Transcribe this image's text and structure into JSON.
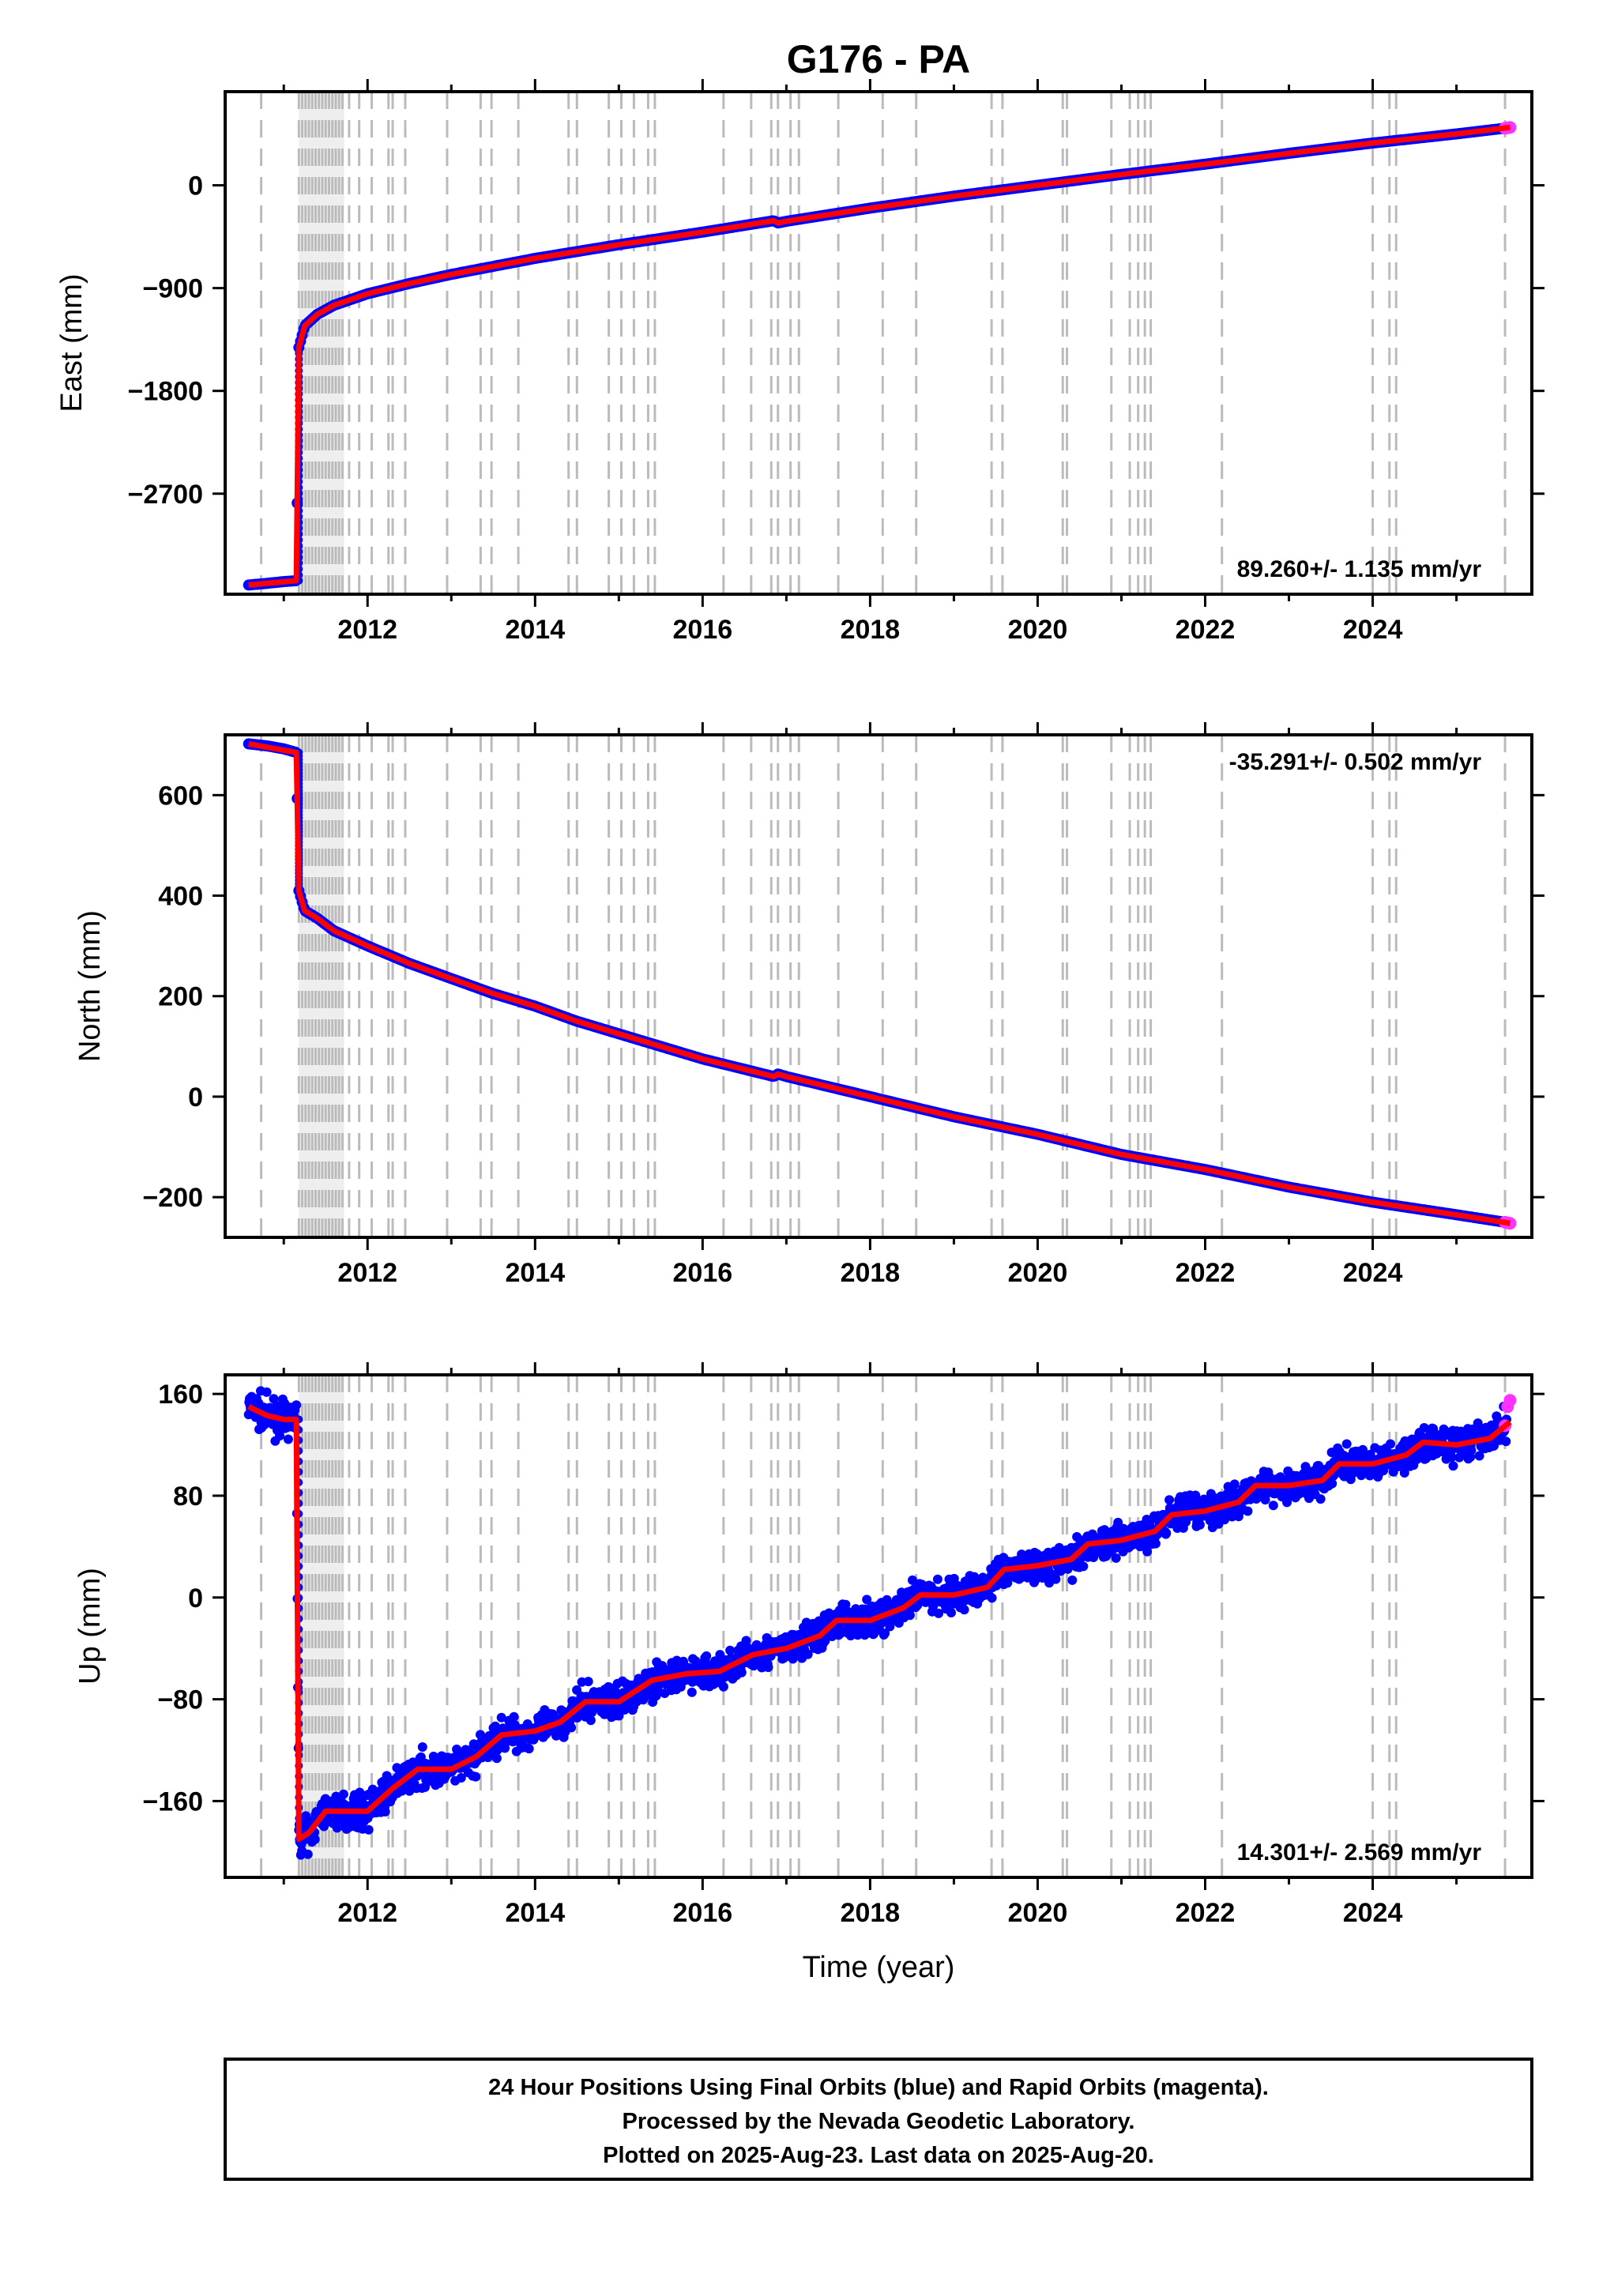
{
  "title": "G176 - PA",
  "colors": {
    "final_orbits": "#0000ff",
    "rapid_orbits": "#ff33ff",
    "model": "#ff0000",
    "event_lines": "#bbbbbb",
    "axes": "#000000"
  },
  "x_axis": {
    "label": "Time (year)",
    "range": [
      2010.3,
      2025.9
    ],
    "ticks": [
      2012,
      2014,
      2016,
      2018,
      2020,
      2022,
      2024
    ],
    "tick_labels": [
      "2012",
      "2014",
      "2016",
      "2018",
      "2020",
      "2022",
      "2024"
    ]
  },
  "event_lines": {
    "dense_span": [
      2011.18,
      2011.72
    ],
    "years": [
      2010.73,
      2011.18,
      2011.22,
      2011.26,
      2011.3,
      2011.34,
      2011.38,
      2011.42,
      2011.46,
      2011.5,
      2011.54,
      2011.58,
      2011.62,
      2011.66,
      2011.7,
      2011.78,
      2011.9,
      2012.05,
      2012.25,
      2012.3,
      2012.45,
      2012.95,
      2013.35,
      2013.48,
      2013.8,
      2014.4,
      2014.5,
      2014.88,
      2015.03,
      2015.18,
      2015.35,
      2015.43,
      2016.25,
      2016.58,
      2016.82,
      2016.9,
      2017.05,
      2017.15,
      2017.62,
      2018.15,
      2018.55,
      2019.45,
      2019.58,
      2020.3,
      2020.35,
      2020.88,
      2021.1,
      2021.2,
      2021.28,
      2021.35,
      2022.2,
      2024.0,
      2024.2,
      2024.28,
      2025.58
    ]
  },
  "chart_data": [
    {
      "type": "scatter",
      "component": "east",
      "ylabel": "East (mm)",
      "ylim": [
        -3580,
        820
      ],
      "yticks": [
        0,
        -900,
        -1800,
        -2700
      ],
      "ytick_labels": [
        "0",
        "−900",
        "−1800",
        "−2700"
      ],
      "rate_label": "89.260+/- 1.135 mm/yr",
      "rate_position": "bottom-right",
      "series": [
        {
          "name": "Final Orbits",
          "values": [
            [
              2010.58,
              -3500
            ],
            [
              2010.8,
              -3485
            ],
            [
              2011.0,
              -3470
            ],
            [
              2011.15,
              -3462
            ],
            [
              2011.18,
              -1420
            ],
            [
              2011.25,
              -1230
            ],
            [
              2011.4,
              -1130
            ],
            [
              2011.6,
              -1050
            ],
            [
              2012.0,
              -950
            ],
            [
              2012.5,
              -860
            ],
            [
              2013.0,
              -780
            ],
            [
              2014.0,
              -640
            ],
            [
              2015.0,
              -520
            ],
            [
              2016.0,
              -410
            ],
            [
              2016.85,
              -310
            ],
            [
              2016.9,
              -330
            ],
            [
              2017.0,
              -315
            ],
            [
              2018.0,
              -200
            ],
            [
              2019.0,
              -95
            ],
            [
              2020.0,
              0
            ],
            [
              2021.0,
              95
            ],
            [
              2022.0,
              185
            ],
            [
              2023.0,
              280
            ],
            [
              2024.0,
              370
            ],
            [
              2025.0,
              450
            ],
            [
              2025.58,
              500
            ],
            [
              2025.62,
              505
            ]
          ]
        },
        {
          "name": "Rapid Orbits",
          "values": [
            [
              2025.58,
              500
            ],
            [
              2025.61,
              504
            ],
            [
              2025.64,
              507
            ]
          ]
        },
        {
          "name": "Model",
          "values": [
            [
              2010.58,
              -3500
            ],
            [
              2011.15,
              -3462
            ],
            [
              2011.18,
              -1420
            ],
            [
              2011.25,
              -1230
            ],
            [
              2011.4,
              -1130
            ],
            [
              2011.6,
              -1050
            ],
            [
              2012.0,
              -950
            ],
            [
              2012.5,
              -860
            ],
            [
              2013.0,
              -780
            ],
            [
              2014.0,
              -640
            ],
            [
              2015.0,
              -520
            ],
            [
              2016.0,
              -410
            ],
            [
              2016.85,
              -310
            ],
            [
              2016.9,
              -330
            ],
            [
              2017.0,
              -315
            ],
            [
              2018.0,
              -200
            ],
            [
              2019.0,
              -95
            ],
            [
              2020.0,
              0
            ],
            [
              2021.0,
              95
            ],
            [
              2022.0,
              185
            ],
            [
              2023.0,
              280
            ],
            [
              2024.0,
              370
            ],
            [
              2025.0,
              450
            ],
            [
              2025.64,
              507
            ]
          ]
        }
      ]
    },
    {
      "type": "scatter",
      "component": "north",
      "ylabel": "North (mm)",
      "ylim": [
        -280,
        720
      ],
      "yticks": [
        600,
        400,
        200,
        0,
        -200
      ],
      "ytick_labels": [
        "600",
        "400",
        "200",
        "0",
        "−200"
      ],
      "rate_label": "-35.291+/- 0.502 mm/yr",
      "rate_position": "top-right",
      "series": [
        {
          "name": "Final Orbits",
          "values": [
            [
              2010.58,
              702
            ],
            [
              2010.8,
              698
            ],
            [
              2011.0,
              692
            ],
            [
              2011.15,
              685
            ],
            [
              2011.18,
              410
            ],
            [
              2011.25,
              370
            ],
            [
              2011.4,
              355
            ],
            [
              2011.6,
              330
            ],
            [
              2012.0,
              300
            ],
            [
              2012.5,
              265
            ],
            [
              2013.0,
              235
            ],
            [
              2013.5,
              205
            ],
            [
              2014.0,
              180
            ],
            [
              2014.5,
              150
            ],
            [
              2015.0,
              125
            ],
            [
              2015.5,
              100
            ],
            [
              2016.0,
              75
            ],
            [
              2016.85,
              40
            ],
            [
              2016.9,
              45
            ],
            [
              2017.0,
              40
            ],
            [
              2018.0,
              0
            ],
            [
              2019.0,
              -40
            ],
            [
              2020.0,
              -75
            ],
            [
              2021.0,
              -115
            ],
            [
              2022.0,
              -145
            ],
            [
              2023.0,
              -180
            ],
            [
              2024.0,
              -210
            ],
            [
              2025.0,
              -235
            ],
            [
              2025.58,
              -250
            ],
            [
              2025.62,
              -252
            ]
          ]
        },
        {
          "name": "Rapid Orbits",
          "values": [
            [
              2025.58,
              -250
            ],
            [
              2025.61,
              -251
            ],
            [
              2025.64,
              -252
            ]
          ]
        },
        {
          "name": "Model",
          "values": [
            [
              2010.58,
              702
            ],
            [
              2011.15,
              685
            ],
            [
              2011.18,
              410
            ],
            [
              2011.25,
              370
            ],
            [
              2011.4,
              355
            ],
            [
              2011.6,
              330
            ],
            [
              2012.0,
              300
            ],
            [
              2012.5,
              265
            ],
            [
              2013.0,
              235
            ],
            [
              2013.5,
              205
            ],
            [
              2014.0,
              180
            ],
            [
              2014.5,
              150
            ],
            [
              2015.0,
              125
            ],
            [
              2015.5,
              100
            ],
            [
              2016.0,
              75
            ],
            [
              2016.85,
              40
            ],
            [
              2016.9,
              45
            ],
            [
              2017.0,
              40
            ],
            [
              2018.0,
              0
            ],
            [
              2019.0,
              -40
            ],
            [
              2020.0,
              -75
            ],
            [
              2021.0,
              -115
            ],
            [
              2022.0,
              -145
            ],
            [
              2023.0,
              -180
            ],
            [
              2024.0,
              -210
            ],
            [
              2025.0,
              -235
            ],
            [
              2025.64,
              -252
            ]
          ]
        }
      ]
    },
    {
      "type": "scatter",
      "component": "up",
      "ylabel": "Up (mm)",
      "ylim": [
        -220,
        175
      ],
      "yticks": [
        160,
        80,
        0,
        -80,
        -160
      ],
      "ytick_labels": [
        "160",
        "80",
        "0",
        "−80",
        "−160"
      ],
      "rate_label": "14.301+/- 2.569 mm/yr",
      "rate_position": "bottom-right",
      "scatter_amplitude_mm": 9,
      "series": [
        {
          "name": "Final Orbits",
          "values": [
            [
              2010.58,
              150
            ],
            [
              2010.8,
              143
            ],
            [
              2011.0,
              140
            ],
            [
              2011.15,
              140
            ],
            [
              2011.18,
              -190
            ],
            [
              2011.3,
              -185
            ],
            [
              2011.5,
              -168
            ],
            [
              2012.0,
              -168
            ],
            [
              2012.3,
              -150
            ],
            [
              2012.6,
              -135
            ],
            [
              2013.0,
              -135
            ],
            [
              2013.3,
              -125
            ],
            [
              2013.6,
              -108
            ],
            [
              2014.0,
              -105
            ],
            [
              2014.3,
              -98
            ],
            [
              2014.6,
              -82
            ],
            [
              2015.0,
              -82
            ],
            [
              2015.4,
              -65
            ],
            [
              2015.8,
              -60
            ],
            [
              2016.2,
              -58
            ],
            [
              2016.6,
              -45
            ],
            [
              2017.0,
              -40
            ],
            [
              2017.4,
              -30
            ],
            [
              2017.6,
              -18
            ],
            [
              2018.0,
              -18
            ],
            [
              2018.4,
              -8
            ],
            [
              2018.6,
              2
            ],
            [
              2019.0,
              2
            ],
            [
              2019.4,
              8
            ],
            [
              2019.6,
              22
            ],
            [
              2020.0,
              25
            ],
            [
              2020.4,
              30
            ],
            [
              2020.6,
              42
            ],
            [
              2021.0,
              45
            ],
            [
              2021.4,
              52
            ],
            [
              2021.6,
              65
            ],
            [
              2022.0,
              68
            ],
            [
              2022.4,
              75
            ],
            [
              2022.6,
              88
            ],
            [
              2023.0,
              88
            ],
            [
              2023.4,
              92
            ],
            [
              2023.6,
              105
            ],
            [
              2024.0,
              105
            ],
            [
              2024.4,
              112
            ],
            [
              2024.6,
              122
            ],
            [
              2025.0,
              120
            ],
            [
              2025.4,
              125
            ],
            [
              2025.6,
              138
            ]
          ]
        },
        {
          "name": "Rapid Orbits",
          "values": [
            [
              2025.58,
              135
            ],
            [
              2025.61,
              150
            ],
            [
              2025.64,
              155
            ]
          ]
        },
        {
          "name": "Model",
          "values": [
            [
              2010.58,
              150
            ],
            [
              2010.8,
              143
            ],
            [
              2011.0,
              140
            ],
            [
              2011.15,
              140
            ],
            [
              2011.18,
              -190
            ],
            [
              2011.3,
              -185
            ],
            [
              2011.5,
              -168
            ],
            [
              2012.0,
              -168
            ],
            [
              2012.3,
              -150
            ],
            [
              2012.6,
              -135
            ],
            [
              2013.0,
              -135
            ],
            [
              2013.3,
              -125
            ],
            [
              2013.6,
              -108
            ],
            [
              2014.0,
              -105
            ],
            [
              2014.3,
              -98
            ],
            [
              2014.6,
              -82
            ],
            [
              2015.0,
              -82
            ],
            [
              2015.4,
              -65
            ],
            [
              2015.8,
              -60
            ],
            [
              2016.2,
              -58
            ],
            [
              2016.6,
              -45
            ],
            [
              2017.0,
              -40
            ],
            [
              2017.4,
              -30
            ],
            [
              2017.6,
              -18
            ],
            [
              2018.0,
              -18
            ],
            [
              2018.4,
              -8
            ],
            [
              2018.6,
              2
            ],
            [
              2019.0,
              2
            ],
            [
              2019.4,
              8
            ],
            [
              2019.6,
              22
            ],
            [
              2020.0,
              25
            ],
            [
              2020.4,
              30
            ],
            [
              2020.6,
              42
            ],
            [
              2021.0,
              45
            ],
            [
              2021.4,
              52
            ],
            [
              2021.6,
              65
            ],
            [
              2022.0,
              68
            ],
            [
              2022.4,
              75
            ],
            [
              2022.6,
              88
            ],
            [
              2023.0,
              88
            ],
            [
              2023.4,
              92
            ],
            [
              2023.6,
              105
            ],
            [
              2024.0,
              105
            ],
            [
              2024.4,
              112
            ],
            [
              2024.6,
              122
            ],
            [
              2025.0,
              120
            ],
            [
              2025.4,
              125
            ],
            [
              2025.64,
              138
            ]
          ]
        }
      ]
    }
  ],
  "footer": {
    "line1": "24 Hour Positions Using Final Orbits (blue) and Rapid Orbits (magenta).",
    "line2": "Processed by the Nevada Geodetic Laboratory.",
    "line3": "Plotted on 2025-Aug-23. Last data on 2025-Aug-20."
  }
}
